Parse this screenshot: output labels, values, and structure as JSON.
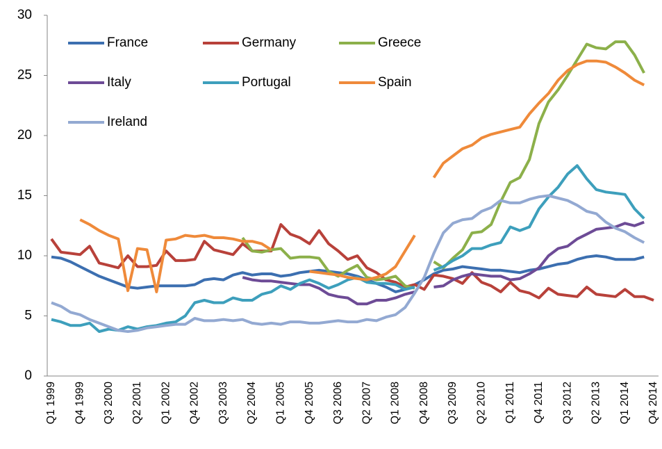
{
  "chart_data": {
    "type": "line",
    "categories": [
      "Q1 1999",
      null,
      null,
      "Q4 1999",
      null,
      null,
      "Q3 2000",
      null,
      null,
      "Q2 2001",
      null,
      null,
      "Q1 2002",
      null,
      null,
      "Q4 2002",
      null,
      null,
      "Q3 2003",
      null,
      null,
      "Q2 2004",
      null,
      null,
      "Q1 2005",
      null,
      null,
      "Q4 2005",
      null,
      null,
      "Q3 2006",
      null,
      null,
      "Q2 2007",
      null,
      null,
      "Q1 2008",
      null,
      null,
      "Q4 2008",
      null,
      null,
      "Q3 2009",
      null,
      null,
      "Q2 2010",
      null,
      null,
      "Q1 2011",
      null,
      null,
      "Q4 2011",
      null,
      null,
      "Q3 2012",
      null,
      null,
      "Q2 2013",
      null,
      null,
      "Q1 2014",
      null,
      null,
      "Q4 2014"
    ],
    "series": [
      {
        "name": "France",
        "color": "#3c6fb0",
        "values": [
          9.9,
          9.8,
          9.5,
          9.1,
          8.7,
          8.3,
          8.0,
          7.7,
          7.4,
          7.3,
          7.4,
          7.5,
          7.5,
          7.5,
          7.5,
          7.6,
          8.0,
          8.1,
          8.0,
          8.4,
          8.6,
          8.4,
          8.5,
          8.5,
          8.3,
          8.4,
          8.6,
          8.7,
          8.8,
          8.7,
          8.6,
          8.5,
          8.3,
          8.0,
          7.7,
          7.4,
          7.0,
          7.2,
          7.6,
          8.0,
          8.5,
          8.8,
          8.9,
          9.1,
          9.0,
          8.9,
          8.8,
          8.8,
          8.7,
          8.6,
          8.8,
          8.9,
          9.1,
          9.3,
          9.4,
          9.7,
          9.9,
          10.0,
          9.9,
          9.7,
          9.7,
          9.7,
          9.9,
          null
        ]
      },
      {
        "name": "Germany",
        "color": "#b8413a",
        "values": [
          11.4,
          10.3,
          10.2,
          10.1,
          10.8,
          9.4,
          9.2,
          9.0,
          10.0,
          9.1,
          9.1,
          9.2,
          10.4,
          9.6,
          9.6,
          9.7,
          11.2,
          10.5,
          10.3,
          10.1,
          11.0,
          10.4,
          10.4,
          10.4,
          12.6,
          11.8,
          11.5,
          11.0,
          12.1,
          11.0,
          10.4,
          9.7,
          10.0,
          9.0,
          8.6,
          8.0,
          7.8,
          7.4,
          7.6,
          7.2,
          8.4,
          8.3,
          8.1,
          7.7,
          8.6,
          7.8,
          7.5,
          7.0,
          7.8,
          7.1,
          6.9,
          6.5,
          7.3,
          6.8,
          6.7,
          6.6,
          7.4,
          6.8,
          6.7,
          6.6,
          7.2,
          6.6,
          6.6,
          6.3
        ]
      },
      {
        "name": "Greece",
        "color": "#8cb04a",
        "values": [
          null,
          null,
          null,
          null,
          null,
          null,
          null,
          null,
          null,
          null,
          null,
          null,
          null,
          null,
          null,
          null,
          null,
          null,
          null,
          null,
          11.5,
          10.4,
          10.3,
          10.5,
          10.6,
          9.8,
          9.9,
          9.9,
          9.8,
          8.7,
          8.3,
          8.8,
          9.2,
          8.2,
          8.0,
          8.1,
          8.3,
          7.5,
          7.3,
          null,
          9.5,
          9.0,
          9.8,
          10.5,
          11.9,
          12.0,
          12.6,
          14.5,
          16.1,
          16.5,
          18.0,
          21.0,
          22.8,
          23.8,
          25.0,
          26.3,
          27.6,
          27.3,
          27.2,
          27.8,
          27.8,
          26.7,
          25.2,
          null
        ]
      },
      {
        "name": "Italy",
        "color": "#6d4b96",
        "values": [
          null,
          null,
          null,
          null,
          null,
          null,
          null,
          null,
          null,
          null,
          null,
          null,
          null,
          null,
          null,
          null,
          null,
          null,
          null,
          null,
          8.2,
          8.0,
          7.9,
          7.9,
          7.8,
          7.7,
          7.6,
          7.6,
          7.3,
          6.8,
          6.6,
          6.5,
          6.0,
          6.0,
          6.3,
          6.3,
          6.5,
          6.8,
          7.0,
          null,
          7.4,
          7.5,
          8.0,
          8.3,
          8.5,
          8.4,
          8.3,
          8.3,
          8.0,
          8.1,
          8.5,
          9.0,
          10.0,
          10.6,
          10.8,
          11.4,
          11.8,
          12.2,
          12.3,
          12.4,
          12.7,
          12.5,
          12.8,
          null
        ]
      },
      {
        "name": "Portugal",
        "color": "#3d9fbc",
        "values": [
          4.7,
          4.5,
          4.2,
          4.2,
          4.4,
          3.7,
          3.9,
          3.8,
          4.1,
          3.9,
          4.1,
          4.2,
          4.4,
          4.5,
          5.0,
          6.1,
          6.3,
          6.1,
          6.1,
          6.5,
          6.3,
          6.3,
          6.8,
          7.0,
          7.5,
          7.2,
          7.7,
          8.0,
          7.7,
          7.3,
          7.6,
          8.0,
          8.2,
          7.8,
          7.7,
          7.7,
          7.6,
          7.2,
          7.4,
          null,
          8.8,
          9.1,
          9.6,
          10.0,
          10.6,
          10.6,
          10.9,
          11.1,
          12.4,
          12.1,
          12.4,
          13.9,
          14.9,
          15.7,
          16.8,
          17.5,
          16.4,
          15.5,
          15.3,
          15.2,
          15.1,
          13.9,
          13.1,
          null
        ]
      },
      {
        "name": "Spain",
        "color": "#ef8a3a",
        "values": [
          null,
          null,
          null,
          13.0,
          12.6,
          12.1,
          11.7,
          11.4,
          7.1,
          10.6,
          10.5,
          7.0,
          11.3,
          11.4,
          11.7,
          11.6,
          11.7,
          11.5,
          11.5,
          11.4,
          11.2,
          11.2,
          11.0,
          10.5,
          null,
          null,
          null,
          8.7,
          8.6,
          8.5,
          8.4,
          8.2,
          8.1,
          8.0,
          8.2,
          8.5,
          9.1,
          10.4,
          11.7,
          null,
          16.5,
          17.7,
          18.3,
          18.9,
          19.2,
          19.8,
          20.1,
          20.3,
          20.5,
          20.7,
          21.8,
          22.7,
          23.5,
          24.6,
          25.4,
          25.9,
          26.2,
          26.2,
          26.1,
          25.7,
          25.2,
          24.6,
          24.2,
          null
        ]
      },
      {
        "name": "Ireland",
        "color": "#93a9d2",
        "values": [
          6.1,
          5.8,
          5.3,
          5.1,
          4.7,
          4.4,
          4.1,
          3.8,
          3.7,
          3.8,
          4.0,
          4.1,
          4.2,
          4.3,
          4.3,
          4.8,
          4.6,
          4.6,
          4.7,
          4.6,
          4.7,
          4.4,
          4.3,
          4.4,
          4.3,
          4.5,
          4.5,
          4.4,
          4.4,
          4.5,
          4.6,
          4.5,
          4.5,
          4.7,
          4.6,
          4.9,
          5.1,
          5.7,
          6.9,
          8.2,
          10.2,
          11.9,
          12.7,
          13.0,
          13.1,
          13.7,
          14.0,
          14.6,
          14.4,
          14.4,
          14.7,
          14.9,
          15.0,
          14.8,
          14.6,
          14.2,
          13.7,
          13.5,
          12.8,
          12.3,
          12.0,
          11.5,
          11.1,
          null
        ]
      }
    ],
    "ylim": [
      0,
      30
    ],
    "yticks": [
      0,
      5,
      10,
      15,
      20,
      25,
      30
    ],
    "grid": false
  }
}
